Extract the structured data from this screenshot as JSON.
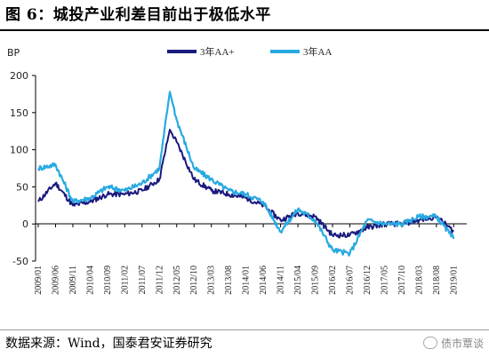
{
  "figure": {
    "title": "图 6：城投产业利差目前出于极低水平",
    "source": "数据来源：Wind，国泰君安证券研究",
    "watermark": "债市覃谈"
  },
  "chart_data": {
    "type": "line",
    "title": "",
    "xlabel": "",
    "ylabel": "",
    "unit_label": "BP",
    "ylim": [
      -50,
      200
    ],
    "yticks": [
      -50,
      0,
      50,
      100,
      150,
      200
    ],
    "grid": false,
    "legend_position": "top-center",
    "x_tick_labels": [
      "2009/01",
      "2009/06",
      "2009/11",
      "2010/04",
      "2010/09",
      "2011/02",
      "2011/07",
      "2011/12",
      "2012/05",
      "2012/10",
      "2013/03",
      "2013/08",
      "2014/01",
      "2014/06",
      "2014/11",
      "2015/04",
      "2015/09",
      "2016/02",
      "2016/07",
      "2016/12",
      "2017/05",
      "2017/10",
      "2018/03",
      "2018/08",
      "2019/01"
    ],
    "x": [
      "2009/01",
      "2009/06",
      "2009/11",
      "2010/04",
      "2010/09",
      "2011/02",
      "2011/07",
      "2011/12",
      "2012/05",
      "2012/10",
      "2013/03",
      "2013/08",
      "2014/01",
      "2014/06",
      "2014/11",
      "2015/04",
      "2015/09",
      "2016/02",
      "2016/07",
      "2016/12",
      "2017/05",
      "2017/10",
      "2018/03",
      "2018/08",
      "2019/01"
    ],
    "series": [
      {
        "name": "3年AA+",
        "color": "#1a1a7e",
        "values": [
          30,
          55,
          25,
          30,
          40,
          40,
          45,
          60,
          110,
          60,
          45,
          40,
          35,
          25,
          5,
          15,
          10,
          -15,
          -15,
          -5,
          0,
          0,
          5,
          10,
          -10
        ],
        "peak": {
          "x": "2012/03",
          "y": 127
        }
      },
      {
        "name": "3年AA",
        "color": "#29a9e1",
        "values": [
          75,
          80,
          30,
          35,
          50,
          45,
          55,
          75,
          140,
          75,
          60,
          45,
          40,
          30,
          -10,
          20,
          5,
          -35,
          -40,
          5,
          0,
          0,
          10,
          10,
          -20
        ],
        "peak": {
          "x": "2012/03",
          "y": 178
        }
      }
    ]
  }
}
